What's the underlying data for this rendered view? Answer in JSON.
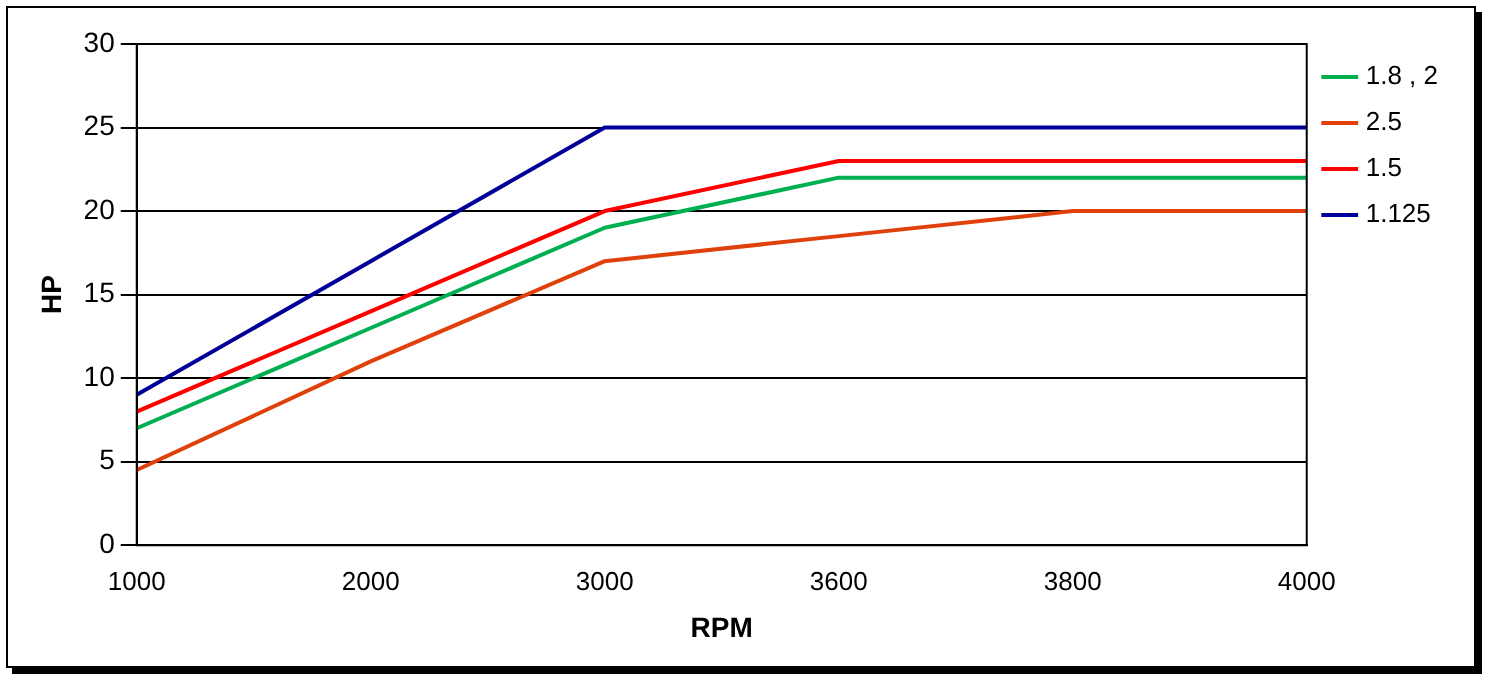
{
  "chart_data": {
    "type": "line",
    "xlabel": "RPM",
    "ylabel": "HP",
    "categories": [
      "1000",
      "2000",
      "3000",
      "3600",
      "3800",
      "4000"
    ],
    "series": [
      {
        "name": "1.8 , 2",
        "color": "#00b050",
        "values": [
          7,
          13,
          19,
          22,
          22,
          22
        ]
      },
      {
        "name": "2.5",
        "color": "#e0400a",
        "values": [
          4.5,
          11,
          17,
          18.5,
          20,
          20
        ]
      },
      {
        "name": "1.5",
        "color": "#ff0000",
        "values": [
          8,
          14,
          20,
          23,
          23,
          23
        ]
      },
      {
        "name": "1.125",
        "color": "#000099",
        "values": [
          9,
          17,
          25,
          25,
          25,
          25
        ]
      }
    ],
    "ylim": [
      0,
      30
    ],
    "yticks": [
      0,
      5,
      10,
      15,
      20,
      25,
      30
    ],
    "grid": "y",
    "legend": "right",
    "marker": "none",
    "line_style": "solid"
  }
}
